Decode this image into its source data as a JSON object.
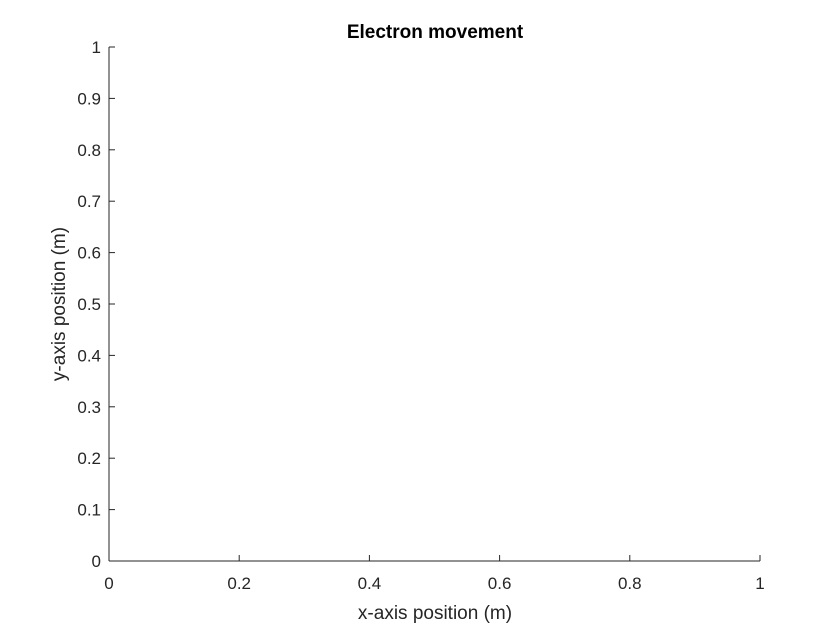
{
  "chart_data": {
    "type": "line",
    "title": "Electron movement",
    "xlabel": "x-axis position (m)",
    "ylabel": "y-axis position (m)",
    "xlim": [
      0,
      1
    ],
    "ylim": [
      0,
      1
    ],
    "x_ticks": [
      0,
      0.2,
      0.4,
      0.6,
      0.8,
      1
    ],
    "x_tick_labels": [
      "0",
      "0.2",
      "0.4",
      "0.6",
      "0.8",
      "1"
    ],
    "y_ticks": [
      0,
      0.1,
      0.2,
      0.3,
      0.4,
      0.5,
      0.6,
      0.7,
      0.8,
      0.9,
      1
    ],
    "y_tick_labels": [
      "0",
      "0.1",
      "0.2",
      "0.3",
      "0.4",
      "0.5",
      "0.6",
      "0.7",
      "0.8",
      "0.9",
      "1"
    ],
    "grid": false,
    "series": [],
    "axis_color": "#262626",
    "background_color": "#ffffff"
  }
}
